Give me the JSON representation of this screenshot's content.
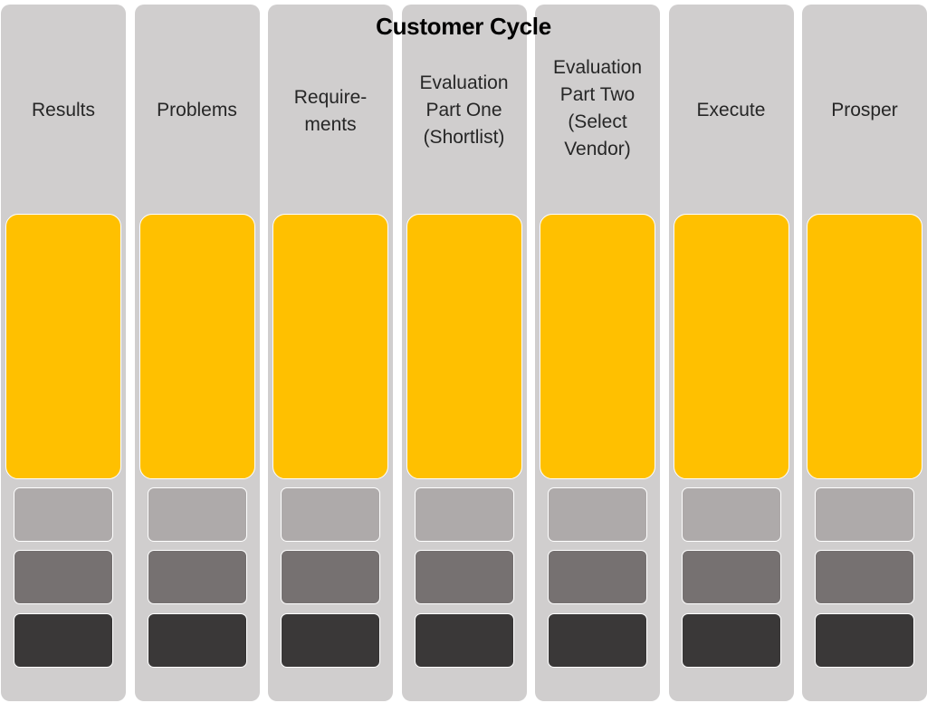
{
  "title": "Customer Cycle",
  "colors": {
    "column": "#d0cece",
    "primary_block": "#ffc000",
    "light_block": "#aeaaaa",
    "mid_block": "#767171",
    "dark_block": "#3a3838"
  },
  "stages": [
    {
      "label": "Results"
    },
    {
      "label": "Problems"
    },
    {
      "label": "Require-\nments"
    },
    {
      "label": "Evaluation\nPart One\n(Shortlist)"
    },
    {
      "label": "Evaluation\nPart Two\n(Select\nVendor)"
    },
    {
      "label": "Execute"
    },
    {
      "label": "Prosper"
    }
  ]
}
